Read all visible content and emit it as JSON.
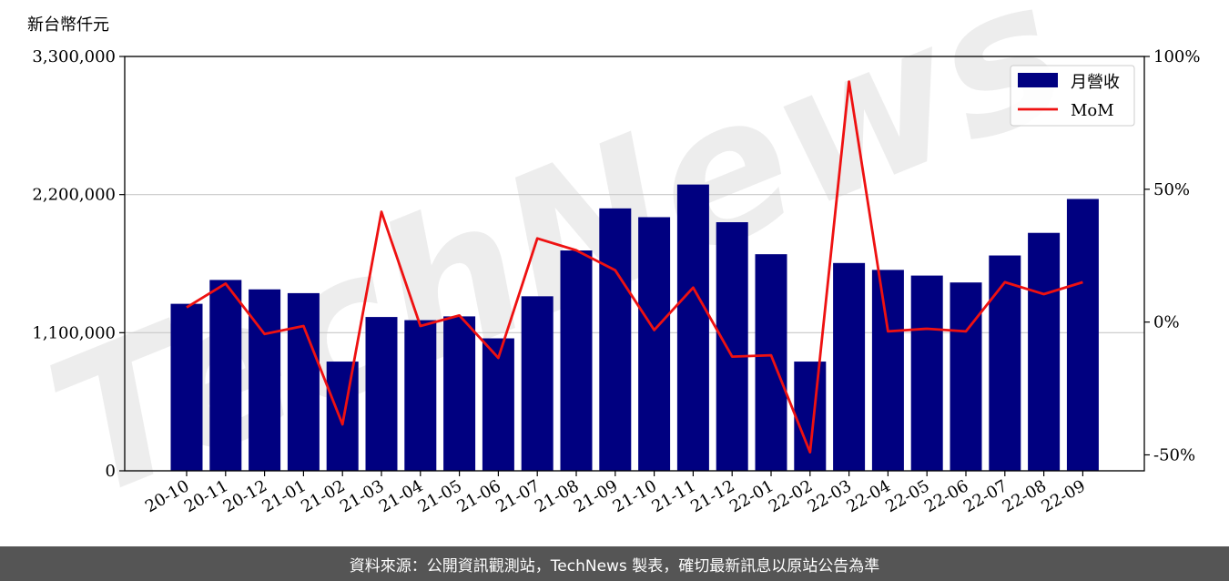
{
  "footer": {
    "text": "資料來源：公開資訊觀測站，TechNews 製表，確切最新訊息以原站公告為準"
  },
  "watermark": {
    "text": "TechNews"
  },
  "colors": {
    "bar": "#000080",
    "line": "#ee1111",
    "grid": "#c8c8c8",
    "watermark": "#ebebeb",
    "footer_bg": "#555555"
  },
  "chart_data": {
    "type": "bar",
    "unit_label": "新台幣仟元",
    "categories": [
      "20-10",
      "20-11",
      "20-12",
      "21-01",
      "21-02",
      "21-03",
      "21-04",
      "21-05",
      "21-06",
      "21-07",
      "21-08",
      "21-09",
      "21-10",
      "21-11",
      "21-12",
      "22-01",
      "22-02",
      "22-03",
      "22-04",
      "22-05",
      "22-06",
      "22-07",
      "22-08",
      "22-09"
    ],
    "series": [
      {
        "name": "月營收",
        "type": "bar",
        "axis": "left",
        "values": [
          1330000,
          1520000,
          1445000,
          1415000,
          870000,
          1225000,
          1200000,
          1230000,
          1055000,
          1390000,
          1755000,
          2090000,
          2020000,
          2280000,
          1980000,
          1725000,
          870000,
          1655000,
          1600000,
          1555000,
          1500000,
          1715000,
          1895000,
          2165000
        ]
      },
      {
        "name": "MoM",
        "type": "line",
        "axis": "right",
        "values": [
          5.5,
          14.5,
          -4.5,
          -1.5,
          -38.5,
          41.5,
          -1.5,
          2.5,
          -13.5,
          31.5,
          27.0,
          19.5,
          -3.0,
          13.0,
          -13.0,
          -12.5,
          -49.0,
          90.5,
          -3.5,
          -2.5,
          -3.5,
          15.0,
          10.5,
          15.0
        ]
      }
    ],
    "y_left": {
      "min": 0,
      "max": 3300000,
      "ticks": [
        0,
        1100000,
        2200000,
        3300000
      ],
      "tick_labels": [
        "0",
        "1,100,000",
        "2,200,000",
        "3,300,000"
      ]
    },
    "y_right": {
      "min": -56,
      "max": 100,
      "ticks": [
        -50,
        0,
        50,
        100
      ],
      "tick_labels": [
        "-50%",
        "0%",
        "50%",
        "100%"
      ]
    },
    "grid": true,
    "legend": {
      "position": "top-right",
      "entries": [
        "月營收",
        "MoM"
      ]
    }
  }
}
